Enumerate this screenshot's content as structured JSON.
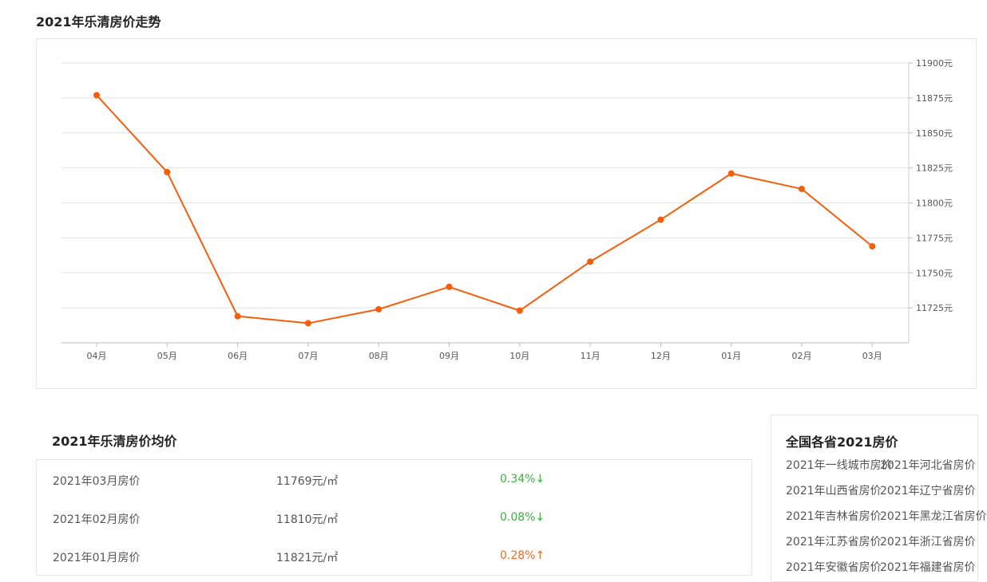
{
  "chart_section": {
    "title": "2021年乐清房价走势"
  },
  "chart_data": {
    "type": "line",
    "title": "2021年乐清房价走势",
    "categories": [
      "04月",
      "05月",
      "06月",
      "07月",
      "08月",
      "09月",
      "10月",
      "11月",
      "12月",
      "01月",
      "02月",
      "03月"
    ],
    "values": [
      11877,
      11822,
      11719,
      11714,
      11724,
      11740,
      11723,
      11758,
      11788,
      11821,
      11810,
      11769
    ],
    "ylim": [
      11700,
      11900
    ],
    "yticks": [
      11725,
      11750,
      11775,
      11800,
      11825,
      11850,
      11875,
      11900
    ],
    "ytick_suffix": "元",
    "y_axis_side": "right",
    "grid": true,
    "line_color": "#f55d0a"
  },
  "avg_section": {
    "title": "2021年乐清房价均价",
    "rows": [
      {
        "month": "2021年03月房价",
        "price": "11769元/㎡",
        "change": "0.34%↓",
        "direction": "down"
      },
      {
        "month": "2021年02月房价",
        "price": "11810元/㎡",
        "change": "0.08%↓",
        "direction": "down"
      },
      {
        "month": "2021年01月房价",
        "price": "11821元/㎡",
        "change": "0.28%↑",
        "direction": "up"
      }
    ]
  },
  "province_section": {
    "title": "全国各省2021房价",
    "links": [
      "2021年一线城市房价",
      "2021年河北省房价",
      "2021年山西省房价",
      "2021年辽宁省房价",
      "2021年吉林省房价",
      "2021年黑龙江省房价",
      "2021年江苏省房价",
      "2021年浙江省房价",
      "2021年安徽省房价",
      "2021年福建省房价"
    ]
  }
}
